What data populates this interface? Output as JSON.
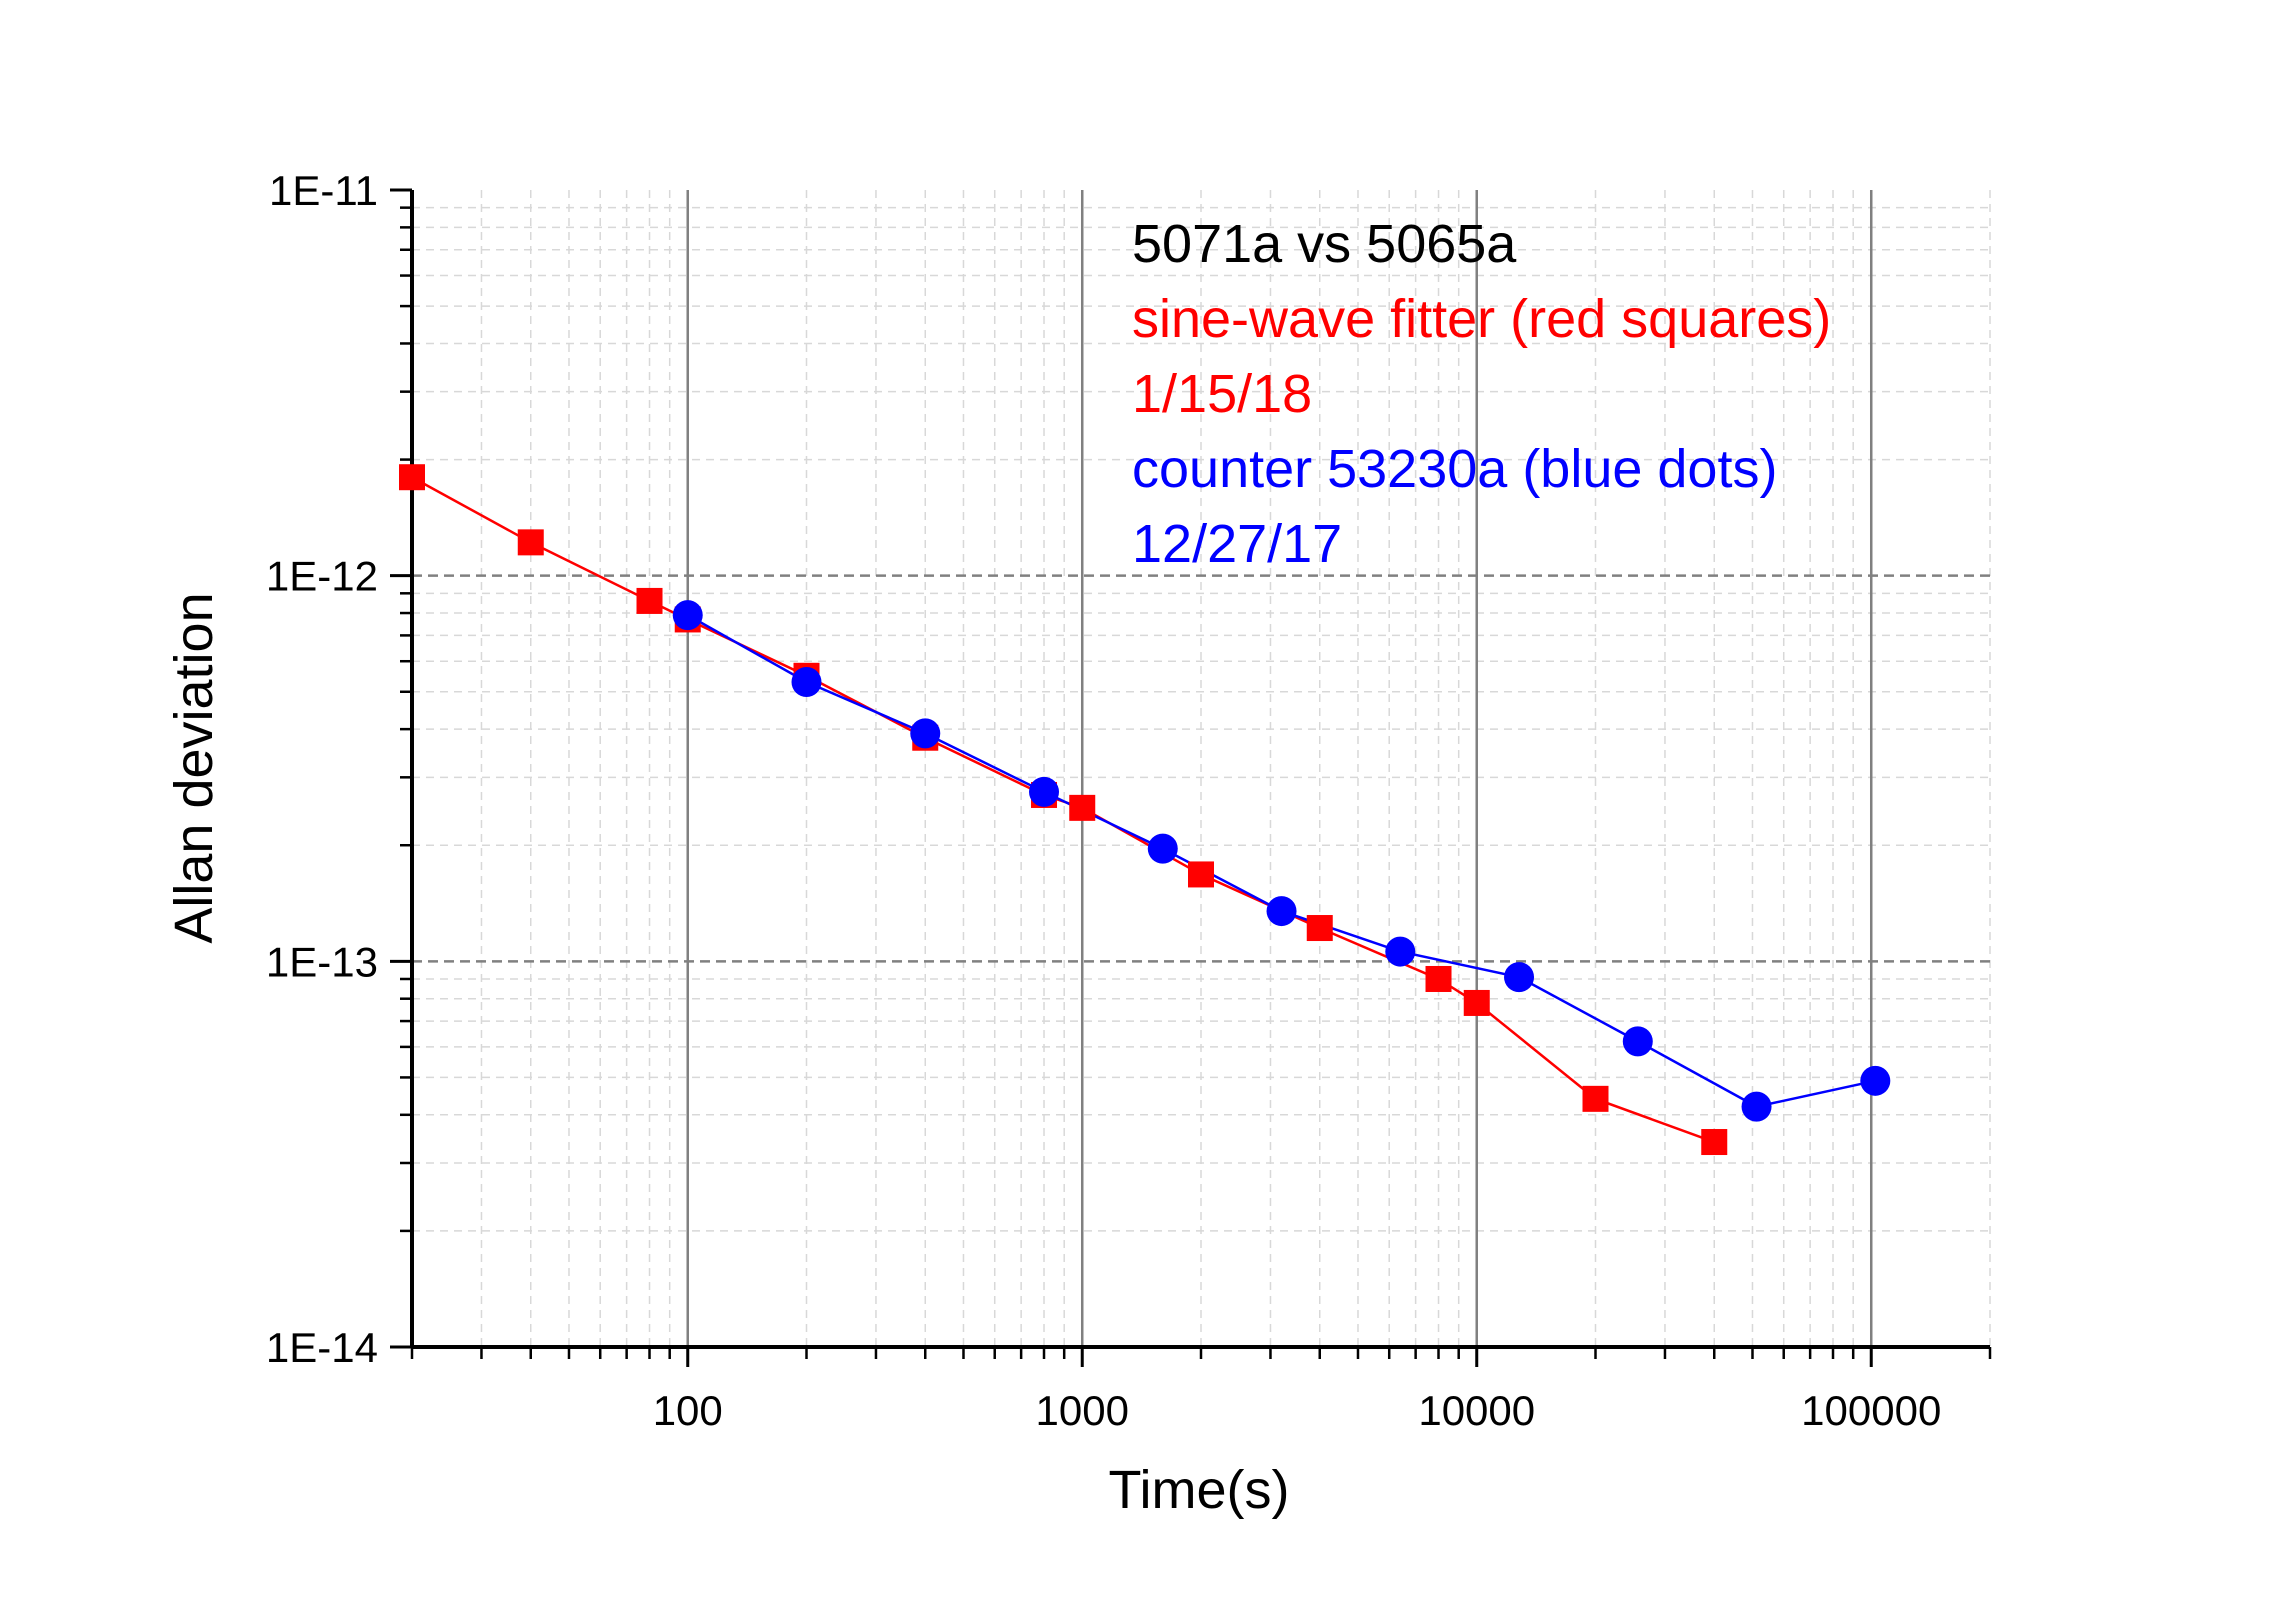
{
  "chart_data": {
    "type": "line",
    "title": "",
    "xlabel": "Time(s)",
    "ylabel": "Allan deviation",
    "xscale": "log",
    "yscale": "log",
    "xlim": [
      20,
      200000
    ],
    "ylim": [
      1e-14,
      1e-11
    ],
    "x_ticks": [
      100,
      1000,
      10000,
      100000
    ],
    "x_tick_labels": [
      "100",
      "1000",
      "10000",
      "100000"
    ],
    "y_ticks": [
      1e-14,
      1e-13,
      1e-12,
      1e-11
    ],
    "y_tick_labels": [
      "1E-14",
      "1E-13",
      "1E-12",
      "1E-11"
    ],
    "grid": true,
    "annotations": [
      {
        "text": "5071a vs 5065a",
        "color": "#000000"
      },
      {
        "text": "sine-wave fitter (red squares)",
        "color": "#ff0000"
      },
      {
        "text": "1/15/18",
        "color": "#ff0000"
      },
      {
        "text": "counter 53230a (blue dots)",
        "color": "#0000ff"
      },
      {
        "text": "12/27/17",
        "color": "#0000ff"
      }
    ],
    "series": [
      {
        "marker": "square",
        "color": "#ff0000",
        "x": [
          20,
          40,
          80,
          100,
          200,
          400,
          800,
          1000,
          2000,
          4000,
          8000,
          10000,
          20000,
          40000
        ],
        "y": [
          1.8e-12,
          1.22e-12,
          8.6e-13,
          7.7e-13,
          5.5e-13,
          3.8e-13,
          2.7e-13,
          2.5e-13,
          1.68e-13,
          1.22e-13,
          9e-14,
          7.8e-14,
          4.4e-14,
          3.4e-14
        ]
      },
      {
        "marker": "circle",
        "color": "#0000ff",
        "x": [
          100,
          200,
          400,
          800,
          1600,
          3200,
          6400,
          12800,
          25600,
          51200,
          102400
        ],
        "y": [
          7.9e-13,
          5.3e-13,
          3.9e-13,
          2.75e-13,
          1.96e-13,
          1.35e-13,
          1.06e-13,
          9.1e-14,
          6.2e-14,
          4.2e-14,
          4.9e-14
        ]
      }
    ]
  }
}
